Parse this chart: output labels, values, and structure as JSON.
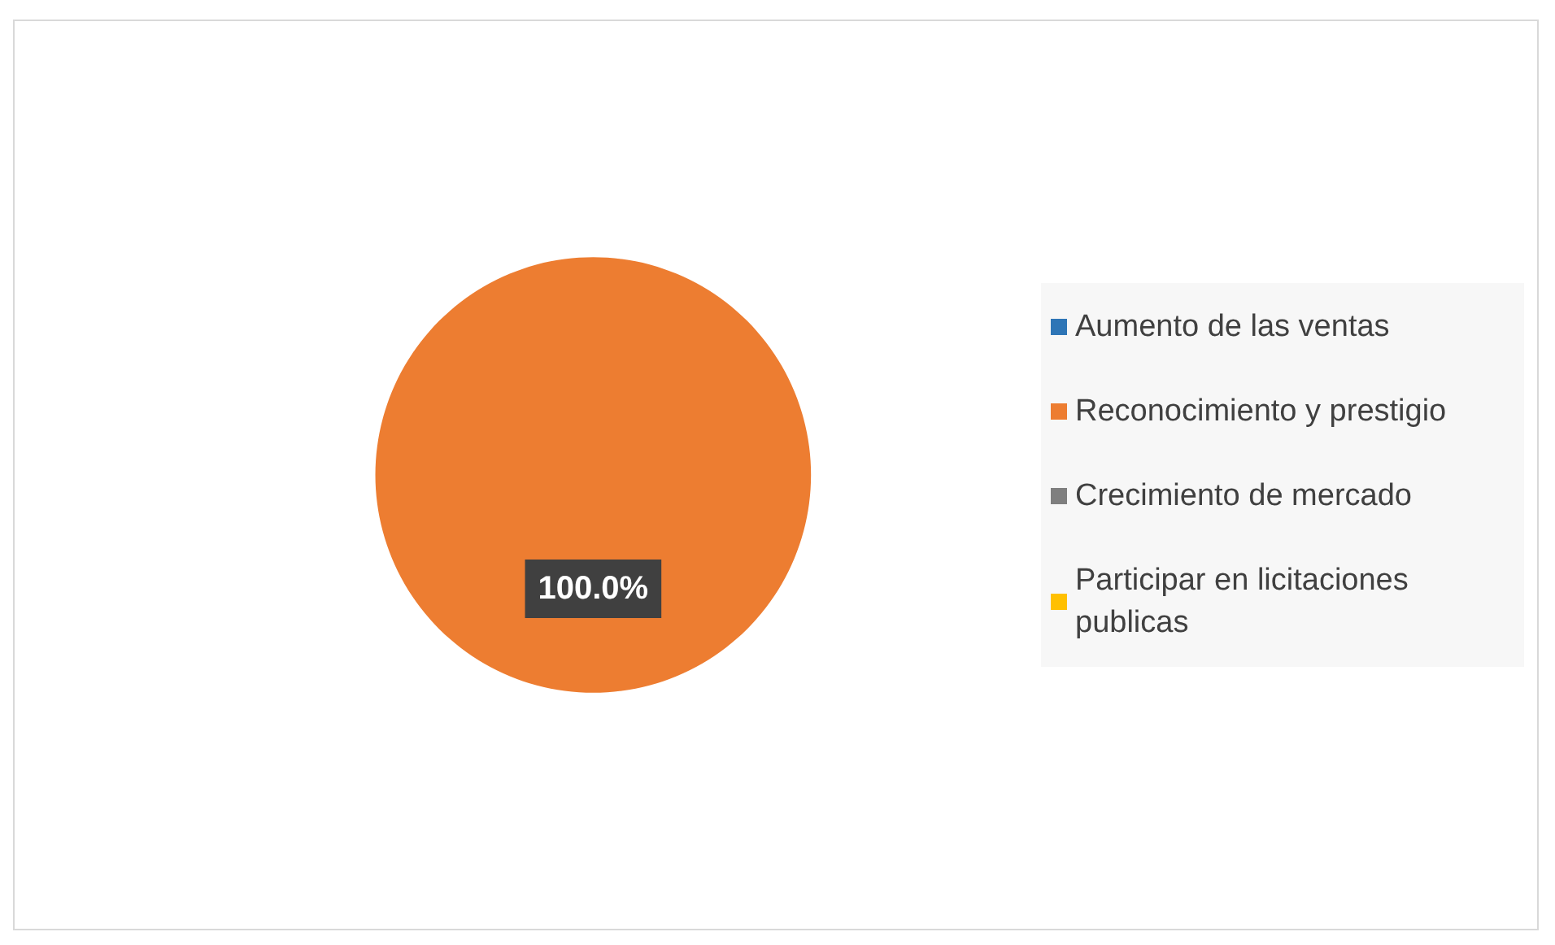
{
  "chart_data": {
    "type": "pie",
    "categories": [
      "Aumento de las ventas",
      "Reconocimiento y prestigio",
      "Crecimiento de mercado",
      "Participar en licitaciones publicas"
    ],
    "values": [
      0,
      100,
      0,
      0
    ],
    "colors": [
      "#2e75b6",
      "#ed7d31",
      "#7f7f7f",
      "#ffc000"
    ],
    "value_labels": [
      null,
      "100.0%",
      null,
      null
    ],
    "legend": "right"
  }
}
